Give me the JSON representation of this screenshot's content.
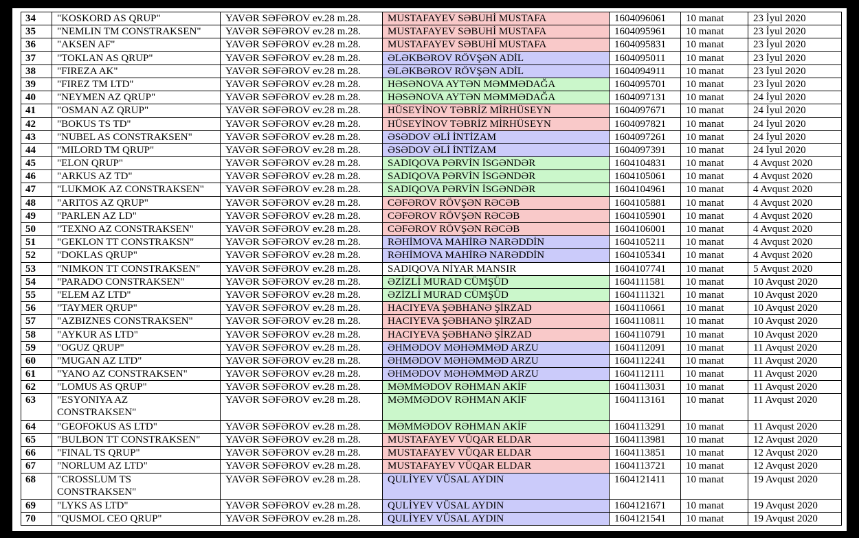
{
  "table": {
    "rows": [
      {
        "cells": [
          "34",
          "\"KOSKORD AS QRUP\"",
          "YAVƏR SƏFƏROV ev.28 m.28.",
          "MUSTAFAYEV SƏBUHİ MUSTAFA",
          "1604096061",
          "10 manat",
          "23 İyul 2020"
        ],
        "color": "#f9c9c9"
      },
      {
        "cells": [
          "35",
          "\"NEMLIN TM CONSTRAKSEN\"",
          "YAVƏR SƏFƏROV ev.28 m.28.",
          "MUSTAFAYEV SƏBUHİ MUSTAFA",
          "1604095961",
          "10 manat",
          "23 İyul 2020"
        ],
        "color": "#f9c9c9"
      },
      {
        "cells": [
          "36",
          "\"AKSEN AF\"",
          "YAVƏR SƏFƏROV ev.28 m.28.",
          "MUSTAFAYEV SƏBUHİ MUSTAFA",
          "1604095831",
          "10 manat",
          "23 İyul 2020"
        ],
        "color": "#f9c9c9"
      },
      {
        "cells": [
          "37",
          "\"TOKLAN AS QRUP\"",
          "YAVƏR SƏFƏROV ev.28 m.28.",
          "ƏLƏKBƏROV RÖVŞƏN ADİL",
          "1604095011",
          "10 manat",
          "23 İyul 2020"
        ],
        "color": "#cbcbfa"
      },
      {
        "cells": [
          "38",
          "\"FIREZA AK\"",
          "YAVƏR SƏFƏROV ev.28 m.28.",
          "ƏLƏKBƏROV RÖVŞƏN ADİL",
          "1604094911",
          "10 manat",
          "23 İyul 2020"
        ],
        "color": "#cbcbfa"
      },
      {
        "cells": [
          "39",
          "\"FIREZ TM LTD\"",
          "YAVƏR SƏFƏROV ev.28 m.28.",
          "HƏSƏNOVA AYTƏN MƏMMƏDAĞA",
          "1604095701",
          "10 manat",
          "23 İyul 2020"
        ],
        "color": "#cbf7cb"
      },
      {
        "cells": [
          "40",
          "\"NEYMEN AZ QRUP\"",
          "YAVƏR SƏFƏROV ev.28 m.28.",
          "HƏSƏNOVA AYTƏN MƏMMƏDAĞA",
          "1604097131",
          "10 manat",
          "24 İyul 2020"
        ],
        "color": "#cbf7cb"
      },
      {
        "cells": [
          "41",
          "\"OSMAN AZ QRUP\"",
          "YAVƏR SƏFƏROV ev.28 m.28.",
          "HÜSEYİNOV TƏBRİZ MİRHÜSEYN",
          "1604097671",
          "10 manat",
          "24 İyul 2020"
        ],
        "color": "#f9c9c9"
      },
      {
        "cells": [
          "42",
          "\"BOKUS TS TD\"",
          "YAVƏR SƏFƏROV ev.28 m.28.",
          "HÜSEYİNOV TƏBRİZ MİRHÜSEYN",
          "1604097821",
          "10 manat",
          "24 İyul 2020"
        ],
        "color": "#f9c9c9"
      },
      {
        "cells": [
          "43",
          "\"NUBEL AS CONSTRAKSEN\"",
          "YAVƏR SƏFƏROV ev.28 m.28.",
          "ƏSƏDOV ƏLİ İNTİZAM",
          "1604097261",
          "10 manat",
          "24 İyul 2020"
        ],
        "color": "#cbcbfa"
      },
      {
        "cells": [
          "44",
          "\"MILORD TM QRUP\"",
          "YAVƏR SƏFƏROV ev.28 m.28.",
          "ƏSƏDOV ƏLİ İNTİZAM",
          "1604097391",
          "10 manat",
          "24 İyul 2020"
        ],
        "color": "#cbcbfa"
      },
      {
        "cells": [
          "45",
          "\"ELON QRUP\"",
          "YAVƏR SƏFƏROV ev.28 m.28.",
          "SADIQOVA PƏRVİN İSGƏNDƏR",
          "1604104831",
          "10 manat",
          "4 Avqust 2020"
        ],
        "color": "#cbf7cb"
      },
      {
        "cells": [
          "46",
          "\"ARKUS AZ TD\"",
          "YAVƏR SƏFƏROV ev.28 m.28.",
          "SADIQOVA PƏRVİN İSGƏNDƏR",
          "1604105061",
          "10 manat",
          "4 Avqust 2020"
        ],
        "color": "#cbf7cb"
      },
      {
        "cells": [
          "47",
          "\"LUKMOK AZ CONSTRAKSEN\"",
          "YAVƏR SƏFƏROV ev.28 m.28.",
          "SADIQOVA PƏRVİN İSGƏNDƏR",
          "1604104961",
          "10 manat",
          "4 Avqust 2020"
        ],
        "color": "#cbf7cb"
      },
      {
        "cells": [
          "48",
          "\"ARITOS AZ QRUP\"",
          "YAVƏR SƏFƏROV ev.28 m.28.",
          "CƏFƏROV RÖVŞƏN RƏCƏB",
          "1604105881",
          "10 manat",
          "4 Avqust 2020"
        ],
        "color": "#f9c9c9"
      },
      {
        "cells": [
          "49",
          "\"PARLEN AZ LD\"",
          "YAVƏR SƏFƏROV ev.28 m.28.",
          "CƏFƏROV RÖVŞƏN RƏCƏB",
          "1604105901",
          "10 manat",
          "4 Avqust 2020"
        ],
        "color": "#f9c9c9"
      },
      {
        "cells": [
          "50",
          "\"TEXNO AZ CONSTRAKSEN\"",
          "YAVƏR SƏFƏROV ev.28 m.28.",
          "CƏFƏROV RÖVŞƏN RƏCƏB",
          "1604106001",
          "10 manat",
          "4 Avqust 2020"
        ],
        "color": "#f9c9c9"
      },
      {
        "cells": [
          "51",
          "\"GEKLON TT CONSTRAKSN\"",
          "YAVƏR SƏFƏROV ev.28 m.28.",
          "RƏHİMOVA MAHİRƏ NARƏDDİN",
          "1604105211",
          "10 manat",
          "4 Avqust 2020"
        ],
        "color": "#cbcbfa"
      },
      {
        "cells": [
          "52",
          "\"DOKLAS QRUP\"",
          "YAVƏR SƏFƏROV ev.28 m.28.",
          "RƏHİMOVA MAHİRƏ NARƏDDİN",
          "1604105341",
          "10 manat",
          "4 Avqust 2020"
        ],
        "color": "#cbcbfa"
      },
      {
        "cells": [
          "53",
          "\"NIMKON TT CONSTRAKSEN\"",
          "YAVƏR SƏFƏROV ev.28 m.28.",
          "SADIQOVA NİYAR MANSIR",
          "1604107741",
          "10 manat",
          "5 Avqust 2020"
        ]
      },
      {
        "cells": [
          "54",
          "\"PARADO CONSTRAKSEN\"",
          "YAVƏR SƏFƏROV ev.28 m.28.",
          "ƏZİZLİ MURAD CÜMŞÜD",
          "1604111581",
          "10 manat",
          "10 Avqust 2020"
        ],
        "color": "#cbf7cb"
      },
      {
        "cells": [
          "55",
          "\"ELEM AZ LTD\"",
          "YAVƏR SƏFƏROV ev.28 m.28.",
          "ƏZİZLİ MURAD CÜMŞÜD",
          "1604111321",
          "10 manat",
          "10 Avqust 2020"
        ],
        "color": "#cbf7cb"
      },
      {
        "cells": [
          "56",
          "\"TAYMER QRUP\"",
          "YAVƏR SƏFƏROV ev.28 m.28.",
          "HACIYEVA ŞƏBHANƏ ŞİRZAD",
          "1604110661",
          "10 manat",
          "10 Avqust 2020"
        ],
        "color": "#f9c9c9"
      },
      {
        "cells": [
          "57",
          "\"AZBIZNES CONSTRAKSEN\"",
          "YAVƏR SƏFƏROV ev.28 m.28.",
          "HACIYEVA ŞƏBHANƏ ŞİRZAD",
          "1604110811",
          "10 manat",
          "10 Avqust 2020"
        ],
        "color": "#f9c9c9"
      },
      {
        "cells": [
          "58",
          "\"AYKUR AS LTD\"",
          "YAVƏR SƏFƏROV ev.28 m.28.",
          "HACIYEVA ŞƏBHANƏ ŞİRZAD",
          "1604110791",
          "10 manat",
          "10 Avqust 2020"
        ],
        "color": "#f9c9c9"
      },
      {
        "cells": [
          "59",
          "\"OGUZ QRUP\"",
          "YAVƏR SƏFƏROV ev.28 m.28.",
          "ƏHMƏDOV MƏHƏMMƏD ARZU",
          "1604112091",
          "10 manat",
          "11 Avqust 2020"
        ],
        "color": "#cbcbfa"
      },
      {
        "cells": [
          "60",
          "\"MUGAN AZ LTD\"",
          "YAVƏR SƏFƏROV ev.28 m.28.",
          "ƏHMƏDOV MƏHƏMMƏD ARZU",
          "1604112241",
          "10 manat",
          "11 Avqust 2020"
        ],
        "color": "#cbcbfa"
      },
      {
        "cells": [
          "61",
          "\"YANO AZ CONSTRAKSEN\"",
          "YAVƏR SƏFƏROV ev.28 m.28.",
          "ƏHMƏDOV MƏHƏMMƏD ARZU",
          "1604112111",
          "10 manat",
          "11 Avqust 2020"
        ],
        "color": "#cbcbfa"
      },
      {
        "cells": [
          "62",
          "\"LOMUS AS QRUP\"",
          "YAVƏR SƏFƏROV ev.28 m.28.",
          "MƏMMƏDOV RƏHMAN AKİF",
          "1604113031",
          "10 manat",
          "11 Avqust 2020"
        ],
        "color": "#cbf7cb"
      },
      {
        "cells": [
          "63",
          "\"ESYONIYA AZ\nCONSTRAKSEN\"",
          "YAVƏR SƏFƏROV ev.28 m.28.",
          "MƏMMƏDOV RƏHMAN AKİF",
          "1604113161",
          "10 manat",
          "11 Avqust 2020"
        ],
        "color": "#cbf7cb"
      },
      {
        "cells": [
          "64",
          "\"GEOFOKUS AS LTD\"",
          "YAVƏR SƏFƏROV ev.28 m.28.",
          "MƏMMƏDOV RƏHMAN AKİF",
          "1604113291",
          "10 manat",
          "11 Avqust 2020"
        ],
        "color": "#cbf7cb"
      },
      {
        "cells": [
          "65",
          "\"BULBON TT CONSTRAKSEN\"",
          "YAVƏR SƏFƏROV ev.28 m.28.",
          "MUSTAFAYEV VÜQAR ELDAR",
          "1604113981",
          "10 manat",
          "12 Avqust 2020"
        ],
        "color": "#f9c9c9"
      },
      {
        "cells": [
          "66",
          "\"FINAL TS QRUP\"",
          "YAVƏR SƏFƏROV ev.28 m.28.",
          "MUSTAFAYEV VÜQAR ELDAR",
          "1604113851",
          "10 manat",
          "12 Avqust 2020"
        ],
        "color": "#f9c9c9"
      },
      {
        "cells": [
          "67",
          "\"NORLUM AZ LTD\"",
          "YAVƏR SƏFƏROV ev.28 m.28.",
          "MUSTAFAYEV VÜQAR ELDAR",
          "1604113721",
          "10 manat",
          "12 Avqust 2020"
        ],
        "color": "#f9c9c9"
      },
      {
        "cells": [
          "68",
          "\"CROSSLUM TS\nCONSTRAKSEN\"",
          "YAVƏR SƏFƏROV ev.28 m.28.",
          "QULİYEV VÜSAL AYDIN",
          "1604121411",
          "10 manat",
          "19 Avqust 2020"
        ],
        "color": "#cbcbfa"
      },
      {
        "cells": [
          "69",
          "\"LYKS AS LTD\"",
          "YAVƏR SƏFƏROV ev.28 m.28.",
          "QULİYEV VÜSAL AYDIN",
          "1604121671",
          "10 manat",
          "19 Avqust 2020"
        ],
        "color": "#cbcbfa"
      },
      {
        "cells": [
          "70",
          "\"QUSMOL CEO QRUP\"",
          "YAVƏR SƏFƏROV ev.28 m.28.",
          "QULİYEV VÜSAL AYDIN",
          "1604121541",
          "10 manat",
          "19 Avqust 2020"
        ],
        "color": "#cbcbfa"
      }
    ]
  }
}
